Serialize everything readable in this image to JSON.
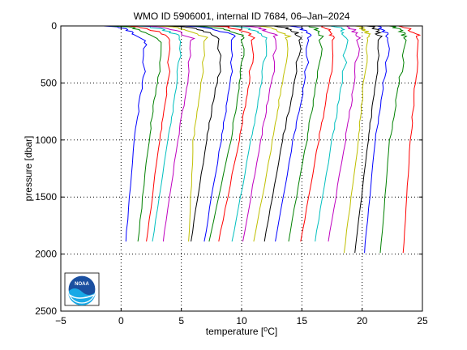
{
  "chart_data": {
    "type": "line",
    "title": "WMO ID 5906001, internal ID 7684, 06–Jan–2024",
    "xlabel_prefix": "temperature [",
    "xlabel_unit": "°C",
    "xlabel_suffix": "]",
    "ylabel": "pressure [dbar]",
    "xlim": [
      -5,
      25
    ],
    "ylim": [
      0,
      2500
    ],
    "y_reversed": true,
    "grid": "dotted",
    "x_ticks": [
      "−5",
      "0",
      "5",
      "10",
      "15",
      "20",
      "25"
    ],
    "x_tick_values": [
      -5,
      0,
      5,
      10,
      15,
      20,
      25
    ],
    "y_ticks": [
      "0",
      "500",
      "1000",
      "1500",
      "2000",
      "2500"
    ],
    "y_tick_values": [
      0,
      500,
      1000,
      1500,
      2000,
      2500
    ],
    "logo_text": "NOAA",
    "colors": [
      "#0000ff",
      "#008000",
      "#ff0000",
      "#00bfbf",
      "#bf00bf",
      "#bfbf00",
      "#000000"
    ],
    "profiles": [
      {
        "color": "#0000ff",
        "surface": [
          -1.5,
          0
        ],
        "mixed_depth": 130,
        "t_mixed": 2.0,
        "t400": 1.9,
        "t1000": 1.1,
        "t1900": 0.4,
        "max_p": 1890
      },
      {
        "color": "#008000",
        "surface": [
          -0.8,
          0
        ],
        "mixed_depth": 110,
        "t_mixed": 3.2,
        "t400": 3.1,
        "t1000": 2.3,
        "t1900": 1.4,
        "max_p": 1890
      },
      {
        "color": "#ff0000",
        "surface": [
          0.2,
          0
        ],
        "mixed_depth": 110,
        "t_mixed": 4.1,
        "t400": 4.0,
        "t1000": 3.2,
        "t1900": 2.1,
        "max_p": 1890
      },
      {
        "color": "#00bfbf",
        "surface": [
          1.0,
          0
        ],
        "mixed_depth": 100,
        "t_mixed": 4.9,
        "t400": 4.8,
        "t1000": 3.9,
        "t1900": 2.6,
        "max_p": 1890
      },
      {
        "color": "#bf00bf",
        "surface": [
          2.0,
          0
        ],
        "mixed_depth": 110,
        "t_mixed": 5.8,
        "t400": 5.7,
        "t1000": 4.7,
        "t1900": 3.5,
        "max_p": 1890
      },
      {
        "color": "#bfbf00",
        "surface": [
          3.0,
          0
        ],
        "mixed_depth": 100,
        "t_mixed": 6.9,
        "t400": 6.8,
        "t1000": 6.0,
        "t1900": 5.6,
        "max_p": 1890
      },
      {
        "color": "#000000",
        "surface": [
          4.0,
          0
        ],
        "mixed_depth": 100,
        "t_mixed": 8.2,
        "t400": 8.1,
        "t1000": 7.1,
        "t1900": 5.8,
        "max_p": 1890
      },
      {
        "color": "#0000ff",
        "surface": [
          5.0,
          0
        ],
        "mixed_depth": 90,
        "t_mixed": 9.3,
        "t400": 9.2,
        "t1000": 8.3,
        "t1900": 6.9,
        "max_p": 1890
      },
      {
        "color": "#008000",
        "surface": [
          6.0,
          0
        ],
        "mixed_depth": 90,
        "t_mixed": 10.1,
        "t400": 10.0,
        "t1000": 9.1,
        "t1900": 7.3,
        "max_p": 1890
      },
      {
        "color": "#ff0000",
        "surface": [
          7.5,
          0
        ],
        "mixed_depth": 90,
        "t_mixed": 11.0,
        "t400": 10.8,
        "t1000": 9.8,
        "t1900": 8.1,
        "max_p": 1890
      },
      {
        "color": "#00bfbf",
        "surface": [
          9.0,
          0
        ],
        "mixed_depth": 90,
        "t_mixed": 12.0,
        "t400": 11.8,
        "t1000": 10.8,
        "t1900": 9.2,
        "max_p": 1890
      },
      {
        "color": "#bf00bf",
        "surface": [
          10.0,
          0
        ],
        "mixed_depth": 90,
        "t_mixed": 12.8,
        "t400": 12.6,
        "t1000": 11.6,
        "t1900": 10.1,
        "max_p": 1890
      },
      {
        "color": "#bfbf00",
        "surface": [
          11.5,
          0
        ],
        "mixed_depth": 90,
        "t_mixed": 13.8,
        "t400": 13.5,
        "t1000": 12.6,
        "t1900": 11.0,
        "max_p": 1890
      },
      {
        "color": "#000000",
        "surface": [
          12.5,
          0
        ],
        "mixed_depth": 90,
        "t_mixed": 14.9,
        "t400": 14.6,
        "t1000": 13.4,
        "t1900": 11.9,
        "max_p": 1890
      },
      {
        "color": "#0000ff",
        "surface": [
          14.0,
          0
        ],
        "mixed_depth": 90,
        "t_mixed": 15.6,
        "t400": 15.4,
        "t1000": 14.3,
        "t1900": 12.8,
        "max_p": 1890
      },
      {
        "color": "#008000",
        "surface": [
          15.5,
          0
        ],
        "mixed_depth": 90,
        "t_mixed": 16.6,
        "t400": 16.4,
        "t1000": 15.4,
        "t1900": 13.9,
        "max_p": 1890
      },
      {
        "color": "#ff0000",
        "surface": [
          16.5,
          0
        ],
        "mixed_depth": 90,
        "t_mixed": 17.6,
        "t400": 17.4,
        "t1000": 16.4,
        "t1900": 14.9,
        "max_p": 1890
      },
      {
        "color": "#00bfbf",
        "surface": [
          17.5,
          0
        ],
        "mixed_depth": 90,
        "t_mixed": 18.7,
        "t400": 18.5,
        "t1000": 17.5,
        "t1900": 16.1,
        "max_p": 1890
      },
      {
        "color": "#bf00bf",
        "surface": [
          18.5,
          0
        ],
        "mixed_depth": 90,
        "t_mixed": 19.7,
        "t400": 19.5,
        "t1000": 18.6,
        "t1900": 17.2,
        "max_p": 1890
      },
      {
        "color": "#bfbf00",
        "surface": [
          19.5,
          0
        ],
        "mixed_depth": 90,
        "t_mixed": 20.5,
        "t400": 20.2,
        "t1000": 19.7,
        "t1900": 18.5,
        "max_p": 1990
      },
      {
        "color": "#000000",
        "surface": [
          20.5,
          0
        ],
        "mixed_depth": 90,
        "t_mixed": 21.5,
        "t400": 21.2,
        "t1000": 20.5,
        "t1900": 19.4,
        "max_p": 1990
      },
      {
        "color": "#0000ff",
        "surface": [
          21.0,
          0
        ],
        "mixed_depth": 90,
        "t_mixed": 22.2,
        "t400": 21.9,
        "t1000": 21.1,
        "t1900": 20.2,
        "max_p": 1990
      },
      {
        "color": "#008000",
        "surface": [
          22.0,
          0
        ],
        "mixed_depth": 90,
        "t_mixed": 23.6,
        "t400": 23.2,
        "t1000": 22.3,
        "t1900": 21.5,
        "max_p": 1990
      },
      {
        "color": "#ff0000",
        "surface": [
          23.0,
          0
        ],
        "mixed_depth": 90,
        "t_mixed": 24.6,
        "t400": 24.5,
        "t1000": 24.0,
        "t1900": 23.4,
        "max_p": 1990
      }
    ]
  }
}
